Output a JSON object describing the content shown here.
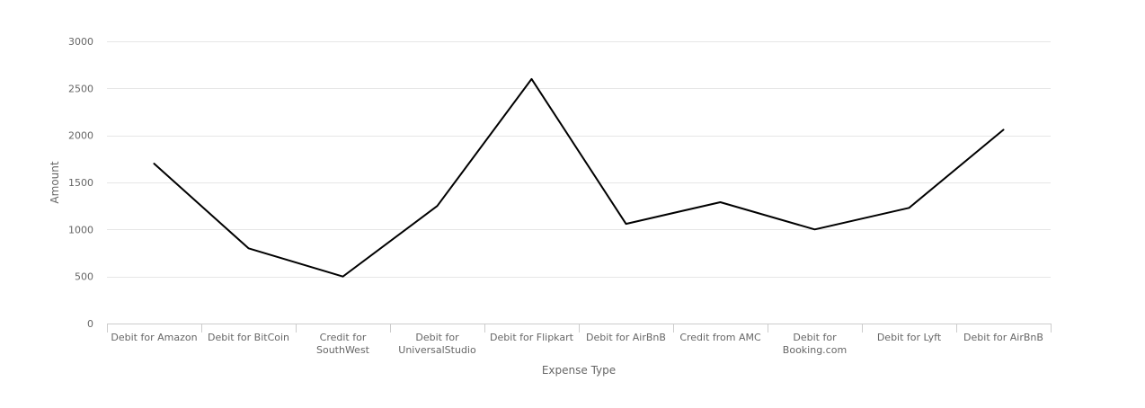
{
  "chart_data": {
    "type": "line",
    "title": "",
    "xlabel": "Expense Type",
    "ylabel": "Amount",
    "categories": [
      "Debit for Amazon",
      "Debit for BitCoin",
      "Credit for SouthWest",
      "Debit for UniversalStudio",
      "Debit for Flipkart",
      "Debit for AirBnB",
      "Credit from AMC",
      "Debit for Booking.com",
      "Debit for Lyft",
      "Debit for AirBnB"
    ],
    "category_lines": [
      [
        "Debit for Amazon"
      ],
      [
        "Debit for BitCoin"
      ],
      [
        "Credit for",
        "SouthWest"
      ],
      [
        "Debit for",
        "UniversalStudio"
      ],
      [
        "Debit for Flipkart"
      ],
      [
        "Debit for AirBnB"
      ],
      [
        "Credit from AMC"
      ],
      [
        "Debit for",
        "Booking.com"
      ],
      [
        "Debit for Lyft"
      ],
      [
        "Debit for AirBnB"
      ]
    ],
    "series": [
      {
        "values": [
          1700,
          800,
          500,
          1250,
          2600,
          1060,
          1290,
          1000,
          1230,
          2060
        ],
        "color": "#000000"
      }
    ],
    "ylim": [
      0,
      3000
    ],
    "yticks": [
      0,
      500,
      1000,
      1500,
      2000,
      2500,
      3000
    ],
    "grid": true,
    "legend": "none"
  }
}
